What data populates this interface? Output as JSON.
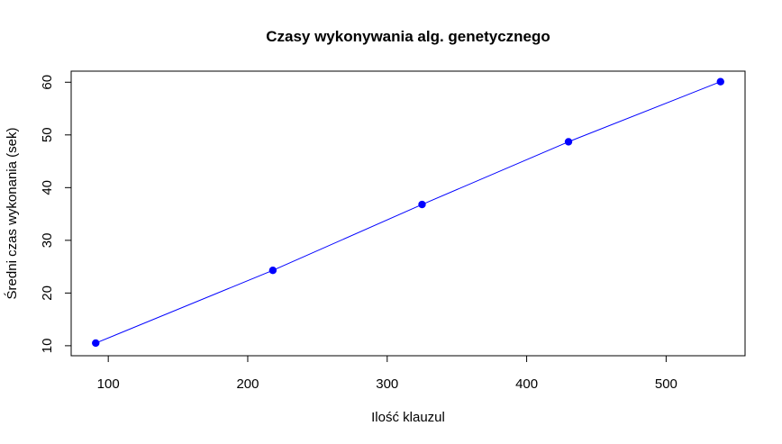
{
  "chart_data": {
    "type": "line",
    "title": "Czasy wykonywania alg. genetycznego",
    "xlabel": "Ilość klauzul",
    "ylabel": "Średni czas wykonania (sek)",
    "x_ticks": [
      100,
      200,
      300,
      400,
      500
    ],
    "y_ticks": [
      10,
      20,
      30,
      40,
      50,
      60
    ],
    "xlim": [
      73.4,
      556.6
    ],
    "ylim": [
      8.1,
      62.1
    ],
    "grid": false,
    "series": [
      {
        "color": "#0000ff",
        "marker": "filled-circle",
        "x": [
          91,
          218,
          325,
          430,
          539
        ],
        "y": [
          10.5,
          24.3,
          36.8,
          48.7,
          60.1
        ]
      }
    ]
  }
}
